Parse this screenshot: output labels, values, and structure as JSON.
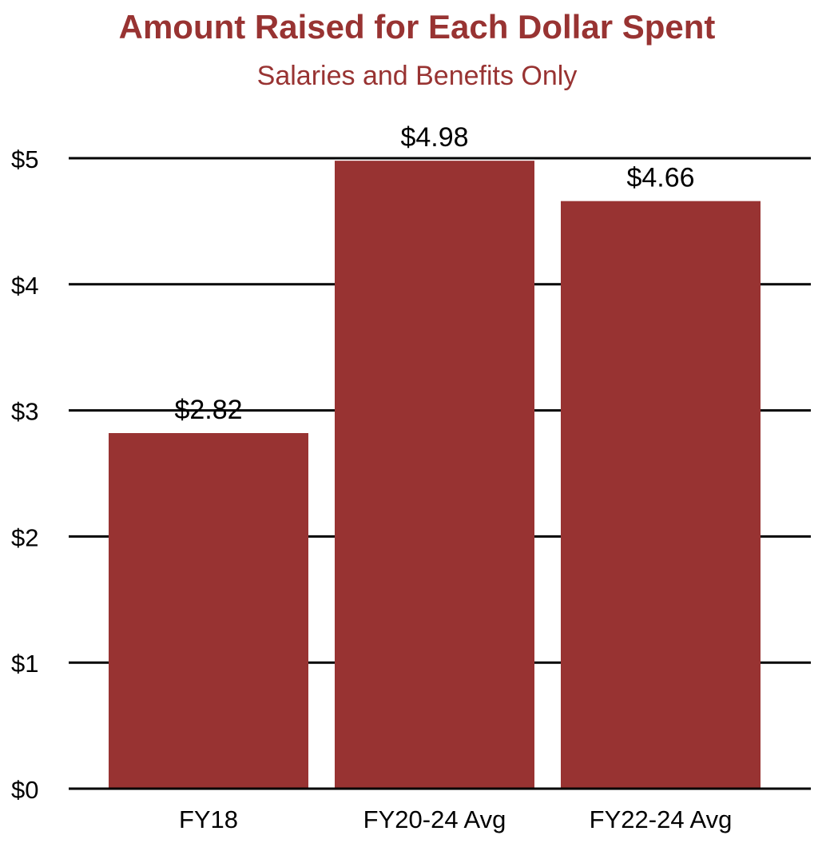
{
  "chart_data": {
    "type": "bar",
    "title": "Amount Raised for Each Dollar Spent",
    "subtitle": "Salaries and Benefits Only",
    "categories": [
      "FY18",
      "FY20-24 Avg",
      "FY22-24 Avg"
    ],
    "values": [
      2.82,
      4.98,
      4.66
    ],
    "data_labels": [
      "$2.82",
      "$4.98",
      "$4.66"
    ],
    "y_ticks": [
      0,
      1,
      2,
      3,
      4,
      5
    ],
    "y_tick_labels": [
      "$0",
      "$1",
      "$2",
      "$3",
      "$4",
      "$5"
    ],
    "ylim": [
      0,
      5
    ],
    "grid": true,
    "legend": "none",
    "bar_color": "#983332",
    "xlabel": "",
    "ylabel": ""
  }
}
